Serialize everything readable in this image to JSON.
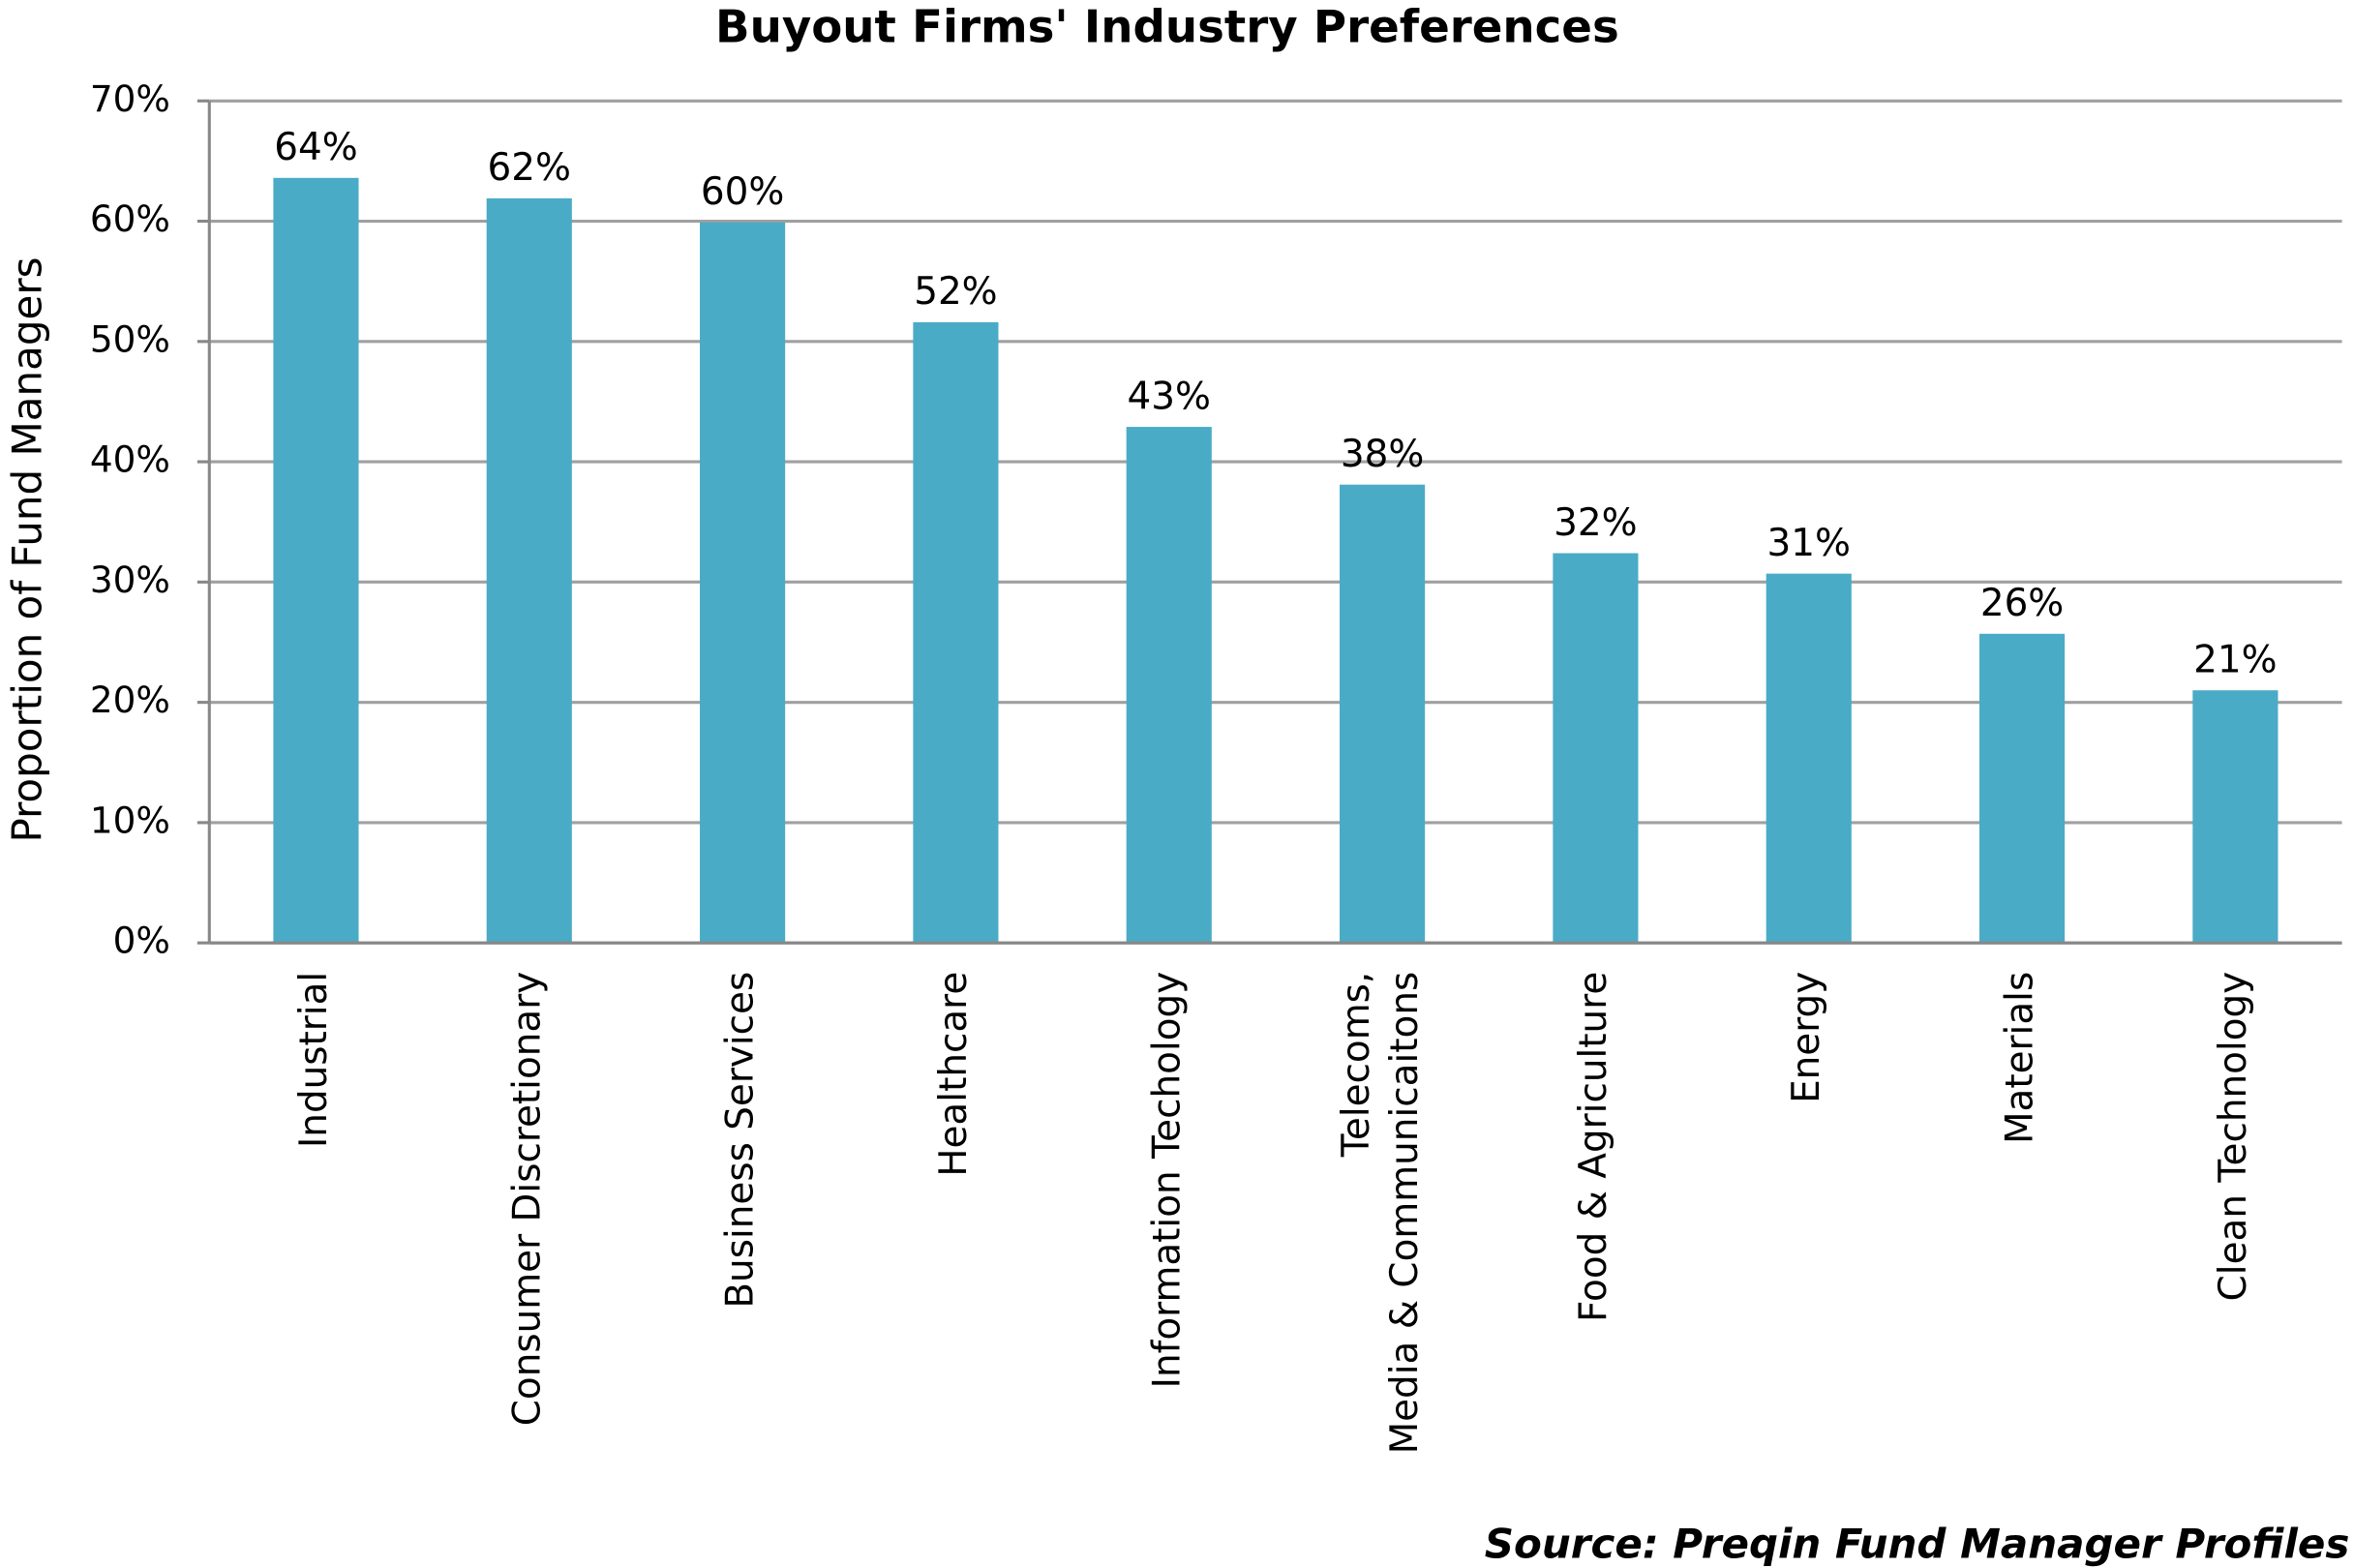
{
  "chart_data": {
    "type": "bar",
    "title": "Buyout Firms' Industry Preferences",
    "y_label": "Proportion of Fund Managers",
    "source": "Source: Preqin Fund Manager Profiles",
    "categories": [
      "Industrial",
      "Consumer Discretionary",
      "Business Services",
      "Healthcare",
      "Information Techology",
      "Telecoms,\nMedia & Communicaitons",
      "Food & Agriculture",
      "Energy",
      "Materials",
      "Clean Technology"
    ],
    "values": [
      63.6,
      61.9,
      59.9,
      51.6,
      42.9,
      38.1,
      32.4,
      30.7,
      25.7,
      21.0
    ],
    "value_labels": [
      "64%",
      "62%",
      "60%",
      "52%",
      "43%",
      "38%",
      "32%",
      "31%",
      "26%",
      "21%"
    ],
    "color": "#4aabc6",
    "ylim": [
      0,
      70
    ],
    "yticks": [
      {
        "value": 0,
        "label": "0%"
      },
      {
        "value": 10,
        "label": "10%"
      },
      {
        "value": 20,
        "label": "20%"
      },
      {
        "value": 30,
        "label": "30%"
      },
      {
        "value": 40,
        "label": "40%"
      },
      {
        "value": 50,
        "label": "50%"
      },
      {
        "value": 60,
        "label": "60%"
      },
      {
        "value": 70,
        "label": "70%"
      }
    ],
    "grid": true
  }
}
